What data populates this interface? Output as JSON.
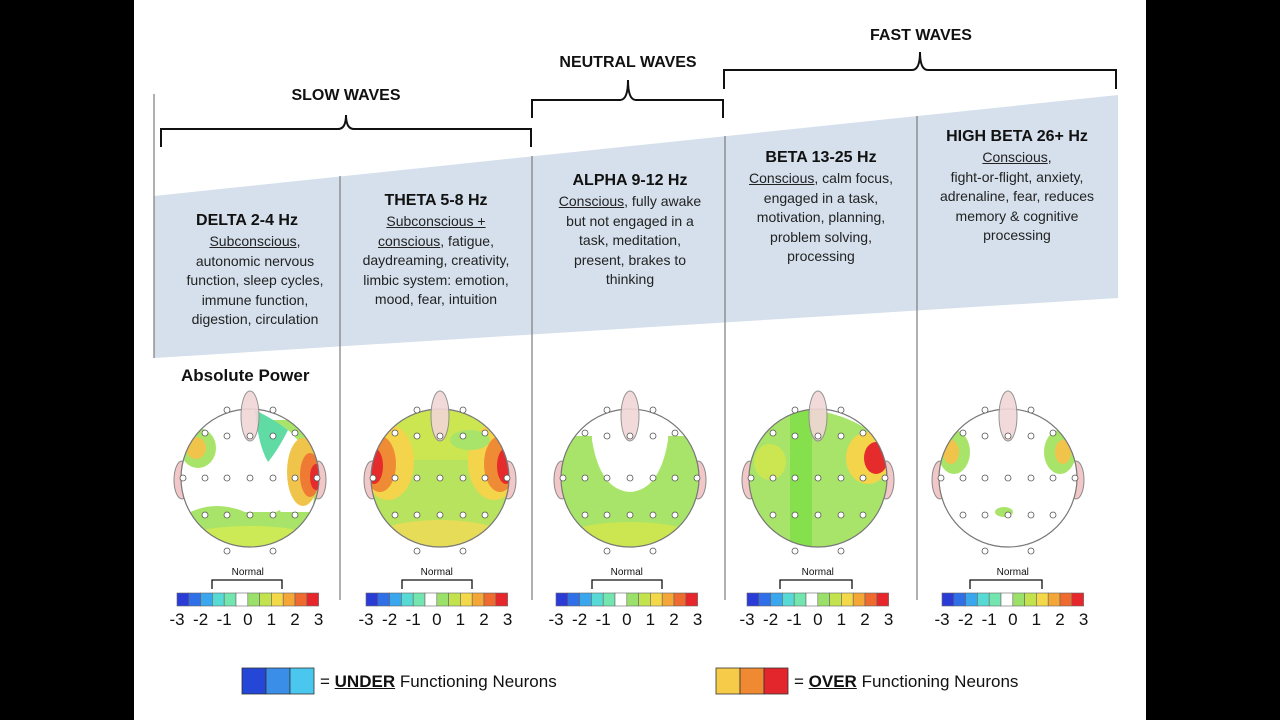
{
  "groups": {
    "slow": "SLOW WAVES",
    "neutral": "NEUTRAL WAVES",
    "fast": "FAST WAVES"
  },
  "bands": [
    {
      "title": "DELTA 2-4 Hz",
      "underlined": "Subconscious",
      "rest": ",\nautonomic nervous\nfunction, sleep cycles,\nimmune function,\ndigestion, circulation"
    },
    {
      "title": "THETA 5-8 Hz",
      "underlined": "Subconscious +\nconscious",
      "rest": ", fatigue,\ndaydreaming, creativity,\nlimbic system: emotion,\nmood, fear, intuition"
    },
    {
      "title": "ALPHA 9-12 Hz",
      "underlined": "Conscious",
      "rest": ", fully awake\nbut not engaged in a\ntask, meditation,\npresent, brakes to\nthinking"
    },
    {
      "title": "BETA 13-25 Hz",
      "underlined": "Conscious",
      "rest": ", calm focus,\nengaged in a task,\nmotivation, planning,\nproblem solving,\nprocessing"
    },
    {
      "title": "HIGH BETA 26+ Hz",
      "underlined": "Conscious",
      "rest": ",\nfight-or-flight, anxiety,\nadrenaline, fear, reduces\nmemory & cognitive\nprocessing"
    }
  ],
  "absolute_power_label": "Absolute Power",
  "scale": {
    "normal_label": "Normal",
    "ticks": [
      "-3",
      "-2",
      "-1",
      "0",
      "1",
      "2",
      "3"
    ],
    "colors": [
      "#2a3bd6",
      "#2f6fe8",
      "#39a6ee",
      "#57d9d6",
      "#73e6b0",
      "#ffffff",
      "#9be06a",
      "#c2e34e",
      "#f3d84a",
      "#f4a637",
      "#ef6a2e",
      "#e6262b"
    ]
  },
  "legend": {
    "under_eq": "= ",
    "under_bold": "UNDER",
    "under_rest": " Functioning Neurons",
    "over_eq": "= ",
    "over_bold": "OVER",
    "over_rest": " Functioning Neurons",
    "under_colors": [
      "#2447d8",
      "#3a8ee8",
      "#49c7ee"
    ],
    "over_colors": [
      "#f6cb4a",
      "#f08a32",
      "#e2262c"
    ]
  }
}
